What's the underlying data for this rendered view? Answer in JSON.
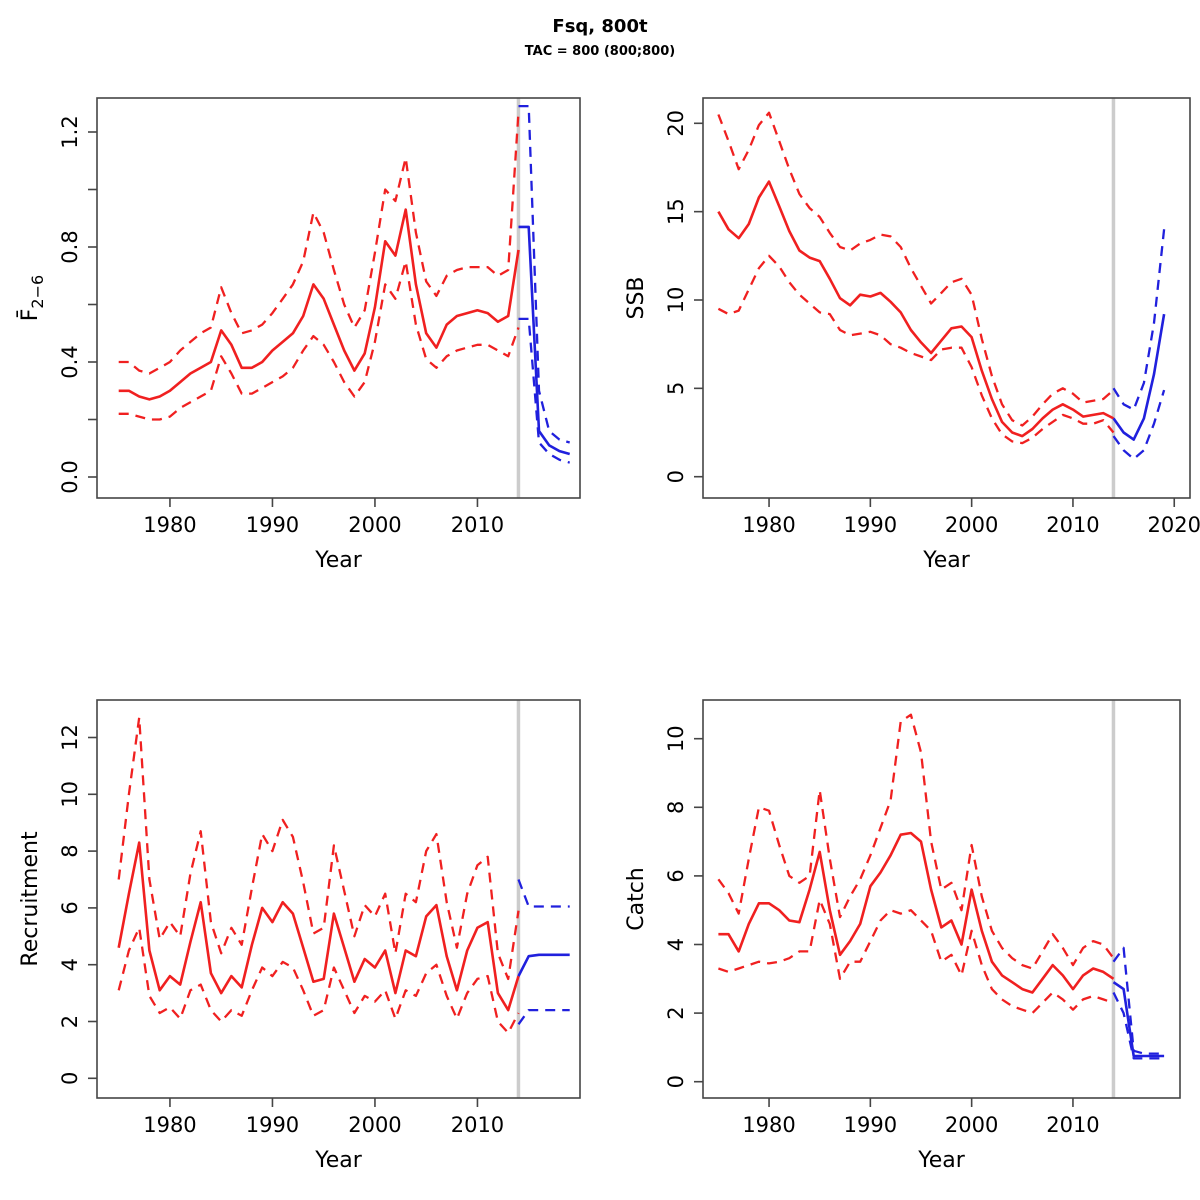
{
  "header": {
    "title": "Fsq, 800t",
    "subtitle": "TAC = 800 (800;800)"
  },
  "colors": {
    "historical": "#f02020",
    "forecast": "#2020dd",
    "divider": "#cccccc",
    "axis": "#454545",
    "text": "#000000"
  },
  "chart_data": [
    {
      "id": "f26",
      "name": "fbar-panel",
      "type": "line",
      "xlabel": "Year",
      "ylabel": "F̄",
      "ylabel_sub": "2−6",
      "x_ticks": [
        "1980",
        "1990",
        "2000",
        "2010"
      ],
      "y_ticks": {
        "values": [
          0,
          0.4,
          0.8,
          1.2
        ],
        "labels": [
          "0.0",
          "0.4",
          "0.8",
          "1.2"
        ]
      },
      "y_minor_ticks": [
        0.2,
        0.6,
        1.0
      ],
      "xlim": [
        1975,
        2019
      ],
      "ylim": [
        0,
        1.3
      ],
      "divider_year": 2014,
      "grid": false,
      "series": [
        {
          "name": "median-historical",
          "style": "solid",
          "color": "historical",
          "start_year": 1975,
          "values": [
            0.3,
            0.3,
            0.28,
            0.27,
            0.28,
            0.3,
            0.33,
            0.36,
            0.38,
            0.4,
            0.51,
            0.46,
            0.38,
            0.38,
            0.4,
            0.44,
            0.47,
            0.5,
            0.56,
            0.67,
            0.62,
            0.53,
            0.44,
            0.37,
            0.43,
            0.59,
            0.82,
            0.77,
            0.93,
            0.67,
            0.5,
            0.45,
            0.53,
            0.56,
            0.57,
            0.58,
            0.57,
            0.54,
            0.56,
            0.79
          ]
        },
        {
          "name": "upper-ci-historical",
          "style": "dashed",
          "color": "historical",
          "start_year": 1975,
          "values": [
            0.4,
            0.4,
            0.37,
            0.36,
            0.38,
            0.4,
            0.44,
            0.47,
            0.5,
            0.52,
            0.66,
            0.57,
            0.5,
            0.51,
            0.53,
            0.57,
            0.62,
            0.67,
            0.75,
            0.92,
            0.85,
            0.72,
            0.6,
            0.52,
            0.58,
            0.78,
            1.0,
            0.96,
            1.11,
            0.85,
            0.68,
            0.63,
            0.7,
            0.72,
            0.73,
            0.73,
            0.73,
            0.7,
            0.72,
            1.27
          ]
        },
        {
          "name": "lower-ci-historical",
          "style": "dashed",
          "color": "historical",
          "start_year": 1975,
          "values": [
            0.22,
            0.22,
            0.21,
            0.2,
            0.2,
            0.21,
            0.24,
            0.26,
            0.28,
            0.3,
            0.42,
            0.36,
            0.29,
            0.29,
            0.31,
            0.33,
            0.35,
            0.38,
            0.44,
            0.49,
            0.46,
            0.4,
            0.33,
            0.28,
            0.33,
            0.47,
            0.67,
            0.62,
            0.75,
            0.53,
            0.41,
            0.38,
            0.42,
            0.44,
            0.45,
            0.46,
            0.46,
            0.44,
            0.42,
            0.52
          ]
        },
        {
          "name": "median-forecast",
          "style": "solid",
          "color": "forecast",
          "start_year": 2014,
          "values": [
            0.87,
            0.87,
            0.16,
            0.11,
            0.09,
            0.08
          ]
        },
        {
          "name": "upper-ci-forecast",
          "style": "dashed",
          "color": "forecast",
          "start_year": 2014,
          "values": [
            1.29,
            1.29,
            0.3,
            0.16,
            0.13,
            0.12
          ]
        },
        {
          "name": "lower-ci-forecast",
          "style": "dashed",
          "color": "forecast",
          "start_year": 2014,
          "values": [
            0.55,
            0.55,
            0.12,
            0.08,
            0.06,
            0.05
          ]
        }
      ]
    },
    {
      "id": "ssb",
      "name": "ssb-panel",
      "type": "line",
      "xlabel": "Year",
      "ylabel": "SSB",
      "ylabel_sub": "",
      "x_ticks": [
        "1980",
        "1990",
        "2000",
        "2010",
        "2020"
      ],
      "y_ticks": {
        "values": [
          0,
          5,
          10,
          15,
          20
        ],
        "labels": [
          "0",
          "5",
          "10",
          "15",
          "20"
        ]
      },
      "y_minor_ticks": [],
      "xlim": [
        1975,
        2019
      ],
      "ylim": [
        0,
        21
      ],
      "divider_year": 2014,
      "grid": false,
      "series": [
        {
          "name": "median-historical",
          "style": "solid",
          "color": "historical",
          "start_year": 1975,
          "values": [
            15.0,
            14.0,
            13.5,
            14.3,
            15.8,
            16.7,
            15.3,
            13.9,
            12.8,
            12.4,
            12.2,
            11.2,
            10.1,
            9.7,
            10.3,
            10.2,
            10.4,
            9.9,
            9.3,
            8.3,
            7.6,
            7.0,
            7.7,
            8.4,
            8.5,
            7.9,
            6.0,
            4.4,
            3.1,
            2.5,
            2.3,
            2.7,
            3.3,
            3.8,
            4.1,
            3.8,
            3.4,
            3.5,
            3.6,
            3.3
          ]
        },
        {
          "name": "upper-ci-historical",
          "style": "dashed",
          "color": "historical",
          "start_year": 1975,
          "values": [
            20.5,
            19.0,
            17.4,
            18.5,
            19.9,
            20.6,
            19.0,
            17.4,
            16.0,
            15.2,
            14.7,
            13.8,
            13.0,
            12.8,
            13.2,
            13.4,
            13.7,
            13.6,
            13.0,
            11.8,
            10.8,
            9.8,
            10.4,
            11.0,
            11.2,
            10.3,
            7.8,
            5.7,
            4.1,
            3.2,
            2.9,
            3.4,
            4.1,
            4.7,
            5.0,
            4.7,
            4.2,
            4.3,
            4.4,
            4.9
          ]
        },
        {
          "name": "lower-ci-historical",
          "style": "dashed",
          "color": "historical",
          "start_year": 1975,
          "values": [
            9.5,
            9.2,
            9.4,
            10.6,
            11.8,
            12.5,
            11.9,
            11.0,
            10.3,
            9.8,
            9.3,
            9.2,
            8.3,
            8.0,
            8.1,
            8.2,
            8.0,
            7.5,
            7.3,
            7.0,
            6.8,
            6.6,
            7.2,
            7.3,
            7.3,
            6.2,
            4.6,
            3.3,
            2.4,
            2.0,
            1.9,
            2.2,
            2.7,
            3.1,
            3.5,
            3.3,
            3.0,
            3.0,
            3.2,
            2.5
          ]
        },
        {
          "name": "median-forecast",
          "style": "solid",
          "color": "forecast",
          "start_year": 2014,
          "values": [
            3.3,
            2.5,
            2.1,
            3.3,
            5.8,
            9.2
          ]
        },
        {
          "name": "upper-ci-forecast",
          "style": "dashed",
          "color": "forecast",
          "start_year": 2014,
          "values": [
            5.0,
            4.1,
            3.8,
            5.3,
            8.7,
            14.0
          ]
        },
        {
          "name": "lower-ci-forecast",
          "style": "dashed",
          "color": "forecast",
          "start_year": 2014,
          "values": [
            2.3,
            1.5,
            1.0,
            1.5,
            3.0,
            4.9
          ]
        }
      ]
    },
    {
      "id": "recruitment",
      "name": "recruitment-panel",
      "type": "line",
      "xlabel": "Year",
      "ylabel": "Recruitment",
      "ylabel_sub": "",
      "x_ticks": [
        "1980",
        "1990",
        "2000",
        "2010"
      ],
      "y_ticks": {
        "values": [
          0,
          2,
          4,
          6,
          8,
          10,
          12
        ],
        "labels": [
          "0",
          "2",
          "4",
          "6",
          "8",
          "10",
          "12"
        ]
      },
      "y_minor_ticks": [],
      "xlim": [
        1975,
        2019
      ],
      "ylim": [
        0,
        13
      ],
      "divider_year": 2014,
      "grid": false,
      "series": [
        {
          "name": "median-historical",
          "style": "solid",
          "color": "historical",
          "start_year": 1975,
          "values": [
            4.6,
            6.5,
            8.3,
            4.5,
            3.1,
            3.6,
            3.3,
            4.8,
            6.2,
            3.7,
            3.0,
            3.6,
            3.2,
            4.7,
            6.0,
            5.5,
            6.2,
            5.8,
            4.6,
            3.4,
            3.5,
            5.8,
            4.6,
            3.4,
            4.2,
            3.9,
            4.5,
            3.0,
            4.5,
            4.3,
            5.7,
            6.1,
            4.3,
            3.1,
            4.5,
            5.3,
            5.5,
            3.0,
            2.4,
            3.6
          ]
        },
        {
          "name": "upper-ci-historical",
          "style": "dashed",
          "color": "historical",
          "start_year": 1975,
          "values": [
            7.0,
            10.0,
            12.7,
            7.0,
            4.9,
            5.5,
            5.0,
            7.2,
            8.7,
            5.5,
            4.4,
            5.3,
            4.7,
            6.7,
            8.6,
            8.0,
            9.1,
            8.5,
            6.9,
            5.1,
            5.3,
            8.2,
            6.6,
            5.0,
            6.1,
            5.7,
            6.5,
            4.4,
            6.5,
            6.2,
            8.0,
            8.6,
            6.2,
            4.6,
            6.5,
            7.5,
            7.8,
            4.4,
            3.5,
            5.9
          ]
        },
        {
          "name": "lower-ci-historical",
          "style": "dashed",
          "color": "historical",
          "start_year": 1975,
          "values": [
            3.1,
            4.5,
            5.3,
            2.9,
            2.3,
            2.5,
            2.1,
            3.1,
            3.3,
            2.4,
            2.0,
            2.4,
            2.2,
            3.1,
            3.9,
            3.6,
            4.1,
            3.9,
            3.1,
            2.2,
            2.4,
            3.9,
            3.1,
            2.3,
            2.9,
            2.7,
            3.1,
            2.1,
            3.1,
            2.9,
            3.7,
            4.0,
            2.9,
            2.1,
            3.0,
            3.5,
            3.6,
            2.0,
            1.6,
            2.3
          ]
        },
        {
          "name": "median-forecast",
          "style": "solid",
          "color": "forecast",
          "start_year": 2014,
          "values": [
            3.6,
            4.3,
            4.35,
            4.35,
            4.35,
            4.35
          ]
        },
        {
          "name": "upper-ci-forecast",
          "style": "dashed",
          "color": "forecast",
          "start_year": 2014,
          "values": [
            7.0,
            6.05,
            6.05,
            6.05,
            6.05,
            6.05
          ]
        },
        {
          "name": "lower-ci-forecast",
          "style": "dashed",
          "color": "forecast",
          "start_year": 2014,
          "values": [
            1.9,
            2.4,
            2.4,
            2.4,
            2.4,
            2.4
          ]
        }
      ]
    },
    {
      "id": "catch",
      "name": "catch-panel",
      "type": "line",
      "xlabel": "Year",
      "ylabel": "Catch",
      "ylabel_sub": "",
      "x_ticks": [
        "1980",
        "1990",
        "2000",
        "2010"
      ],
      "y_ticks": {
        "values": [
          0,
          2,
          4,
          6,
          8,
          10
        ],
        "labels": [
          "0",
          "2",
          "4",
          "6",
          "8",
          "10"
        ]
      },
      "y_minor_ticks": [],
      "xlim": [
        1975,
        2019
      ],
      "ylim": [
        0,
        11
      ],
      "divider_year": 2014,
      "grid": false,
      "series": [
        {
          "name": "median-historical",
          "style": "solid",
          "color": "historical",
          "start_year": 1975,
          "values": [
            4.3,
            4.3,
            3.8,
            4.6,
            5.2,
            5.2,
            5.0,
            4.7,
            4.65,
            5.6,
            6.7,
            5.0,
            3.7,
            4.1,
            4.6,
            5.7,
            6.1,
            6.6,
            7.2,
            7.25,
            7.0,
            5.6,
            4.5,
            4.7,
            4.0,
            5.6,
            4.4,
            3.5,
            3.1,
            2.9,
            2.7,
            2.6,
            3.0,
            3.4,
            3.1,
            2.7,
            3.1,
            3.3,
            3.2,
            3.0
          ]
        },
        {
          "name": "upper-ci-historical",
          "style": "dashed",
          "color": "historical",
          "start_year": 1975,
          "values": [
            5.9,
            5.5,
            4.9,
            6.5,
            8.0,
            7.9,
            6.9,
            6.0,
            5.8,
            6.0,
            8.5,
            6.5,
            4.8,
            5.4,
            5.9,
            6.6,
            7.4,
            8.2,
            10.5,
            10.7,
            9.6,
            7.0,
            5.6,
            5.8,
            5.0,
            6.9,
            5.4,
            4.4,
            3.9,
            3.6,
            3.4,
            3.3,
            3.8,
            4.3,
            3.9,
            3.4,
            3.9,
            4.1,
            4.0,
            3.6
          ]
        },
        {
          "name": "lower-ci-historical",
          "style": "dashed",
          "color": "historical",
          "start_year": 1975,
          "values": [
            3.3,
            3.2,
            3.3,
            3.4,
            3.5,
            3.45,
            3.5,
            3.6,
            3.8,
            3.8,
            5.3,
            4.6,
            3.0,
            3.5,
            3.5,
            4.1,
            4.7,
            5.0,
            4.9,
            5.0,
            4.7,
            4.4,
            3.5,
            3.7,
            3.1,
            4.4,
            3.4,
            2.7,
            2.4,
            2.2,
            2.1,
            2.0,
            2.3,
            2.6,
            2.4,
            2.1,
            2.4,
            2.5,
            2.4,
            2.3
          ]
        },
        {
          "name": "median-forecast",
          "style": "solid",
          "color": "forecast",
          "start_year": 2014,
          "values": [
            2.9,
            2.7,
            0.75,
            0.75,
            0.75,
            0.75
          ]
        },
        {
          "name": "upper-ci-forecast",
          "style": "dashed",
          "color": "forecast",
          "start_year": 2014,
          "values": [
            3.5,
            3.9,
            0.9,
            0.82,
            0.82,
            0.82
          ]
        },
        {
          "name": "lower-ci-forecast",
          "style": "dashed",
          "color": "forecast",
          "start_year": 2014,
          "values": [
            2.6,
            2.0,
            0.68,
            0.68,
            0.68,
            0.68
          ]
        }
      ]
    }
  ]
}
